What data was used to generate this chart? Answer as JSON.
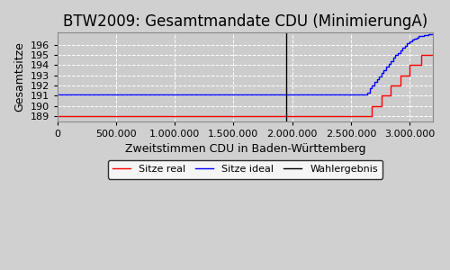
{
  "title": "BTW2009: Gesamtmandate CDU (MinimierungA)",
  "xlabel": "Zweitstimmen CDU in Baden-Württemberg",
  "ylabel": "Gesamtsitze",
  "background_color": "#d0d0d0",
  "plot_bg_color": "#cccccc",
  "xlim": [
    0,
    3200000
  ],
  "ylim": [
    188.5,
    197.2
  ],
  "yticks": [
    189,
    190,
    191,
    192,
    193,
    194,
    195,
    196
  ],
  "xticks": [
    0,
    500000,
    1000000,
    1500000,
    2000000,
    2500000,
    3000000
  ],
  "wahlergebnis_x": 1950000,
  "legend_labels": [
    "Sitze real",
    "Sitze ideal",
    "Wahlergebnis"
  ],
  "legend_colors": [
    "red",
    "blue",
    "black"
  ],
  "title_fontsize": 12,
  "axis_fontsize": 9,
  "tick_fontsize": 8,
  "real_x": [
    0,
    2600000,
    2600000,
    2680000,
    2680000,
    2760000,
    2760000,
    2840000,
    2840000,
    2920000,
    2920000,
    3000000,
    3000000,
    3100000,
    3100000,
    3200000
  ],
  "real_y": [
    189,
    189,
    189,
    189,
    190,
    190,
    191,
    191,
    192,
    192,
    193,
    193,
    194,
    194,
    195,
    195
  ],
  "ideal_x": [
    0,
    2630000,
    2640000,
    2660000,
    2680000,
    2700000,
    2720000,
    2740000,
    2760000,
    2780000,
    2800000,
    2820000,
    2840000,
    2860000,
    2880000,
    2900000,
    2920000,
    2940000,
    2960000,
    2980000,
    3000000,
    3020000,
    3040000,
    3060000,
    3080000,
    3100000,
    3120000,
    3140000,
    3160000,
    3180000,
    3200000
  ],
  "ideal_y": [
    191.15,
    191.15,
    191.3,
    191.7,
    192.0,
    192.3,
    192.6,
    192.9,
    193.2,
    193.5,
    193.8,
    194.1,
    194.4,
    194.7,
    194.95,
    195.2,
    195.45,
    195.7,
    195.9,
    196.1,
    196.3,
    196.45,
    196.6,
    196.7,
    196.8,
    196.87,
    196.93,
    196.97,
    197.0,
    197.02,
    197.04
  ]
}
